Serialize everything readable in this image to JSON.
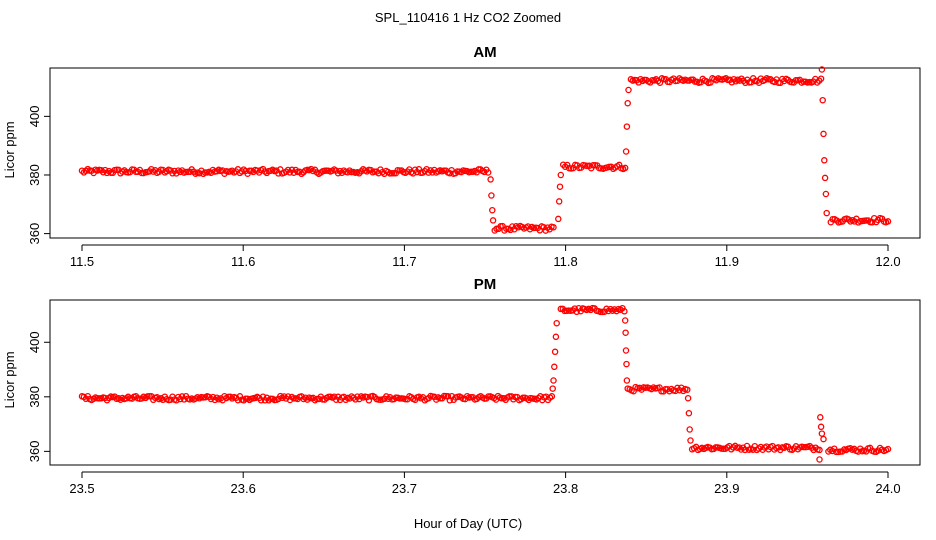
{
  "figure": {
    "title": "SPL_110416  1 Hz CO2 Zoomed",
    "xlabel": "Hour of Day (UTC)"
  },
  "chart_data": [
    {
      "type": "scatter",
      "title": "AM",
      "ylabel": "Licor ppm",
      "xlim": [
        11.5,
        12.0
      ],
      "ylim": [
        358.5,
        416.5
      ],
      "x_ticks": [
        "11.5",
        "11.6",
        "11.7",
        "11.8",
        "11.9",
        "12.0"
      ],
      "y_ticks": [
        "360",
        "380",
        "400"
      ],
      "marker_color": "#ff0000",
      "series": [
        {
          "segments": [
            {
              "x0": 11.5,
              "x1": 11.752,
              "y": 381.2
            },
            {
              "x0": 11.756,
              "x1": 11.7925,
              "y": 361.8
            },
            {
              "x0": 11.7985,
              "x1": 11.837,
              "y": 382.8
            },
            {
              "x0": 11.8405,
              "x1": 11.9585,
              "y": 412.2
            },
            {
              "x0": 11.9645,
              "x1": 12.0,
              "y": 364.6
            }
          ],
          "transitions": [
            {
              "x": 11.7535,
              "y": 378.5
            },
            {
              "x": 11.754,
              "y": 373.0
            },
            {
              "x": 11.7545,
              "y": 368.0
            },
            {
              "x": 11.755,
              "y": 364.5
            },
            {
              "x": 11.7955,
              "y": 365.0
            },
            {
              "x": 11.796,
              "y": 371.0
            },
            {
              "x": 11.7965,
              "y": 376.0
            },
            {
              "x": 11.797,
              "y": 380.0
            },
            {
              "x": 11.8375,
              "y": 388.0
            },
            {
              "x": 11.838,
              "y": 396.5
            },
            {
              "x": 11.8385,
              "y": 404.5
            },
            {
              "x": 11.839,
              "y": 409.0
            },
            {
              "x": 11.959,
              "y": 416.0
            },
            {
              "x": 11.9595,
              "y": 405.5
            },
            {
              "x": 11.96,
              "y": 394.0
            },
            {
              "x": 11.9605,
              "y": 385.0
            },
            {
              "x": 11.961,
              "y": 379.0
            },
            {
              "x": 11.9615,
              "y": 373.5
            },
            {
              "x": 11.962,
              "y": 367.0
            }
          ]
        }
      ]
    },
    {
      "type": "scatter",
      "title": "PM",
      "ylabel": "Licor ppm",
      "xlim": [
        23.5,
        24.0
      ],
      "ylim": [
        355.0,
        415.5
      ],
      "x_ticks": [
        "23.5",
        "23.6",
        "23.7",
        "23.8",
        "23.9",
        "24.0"
      ],
      "y_ticks": [
        "360",
        "380",
        "400"
      ],
      "marker_color": "#ff0000",
      "series": [
        {
          "segments": [
            {
              "x0": 23.5,
              "x1": 23.7915,
              "y": 379.5
            },
            {
              "x0": 23.797,
              "x1": 23.8365,
              "y": 411.8
            },
            {
              "x0": 23.8385,
              "x1": 23.8755,
              "y": 382.8
            },
            {
              "x0": 23.8785,
              "x1": 23.9575,
              "y": 361.3
            },
            {
              "x0": 23.963,
              "x1": 24.0,
              "y": 360.6
            }
          ],
          "transitions": [
            {
              "x": 23.792,
              "y": 383.0
            },
            {
              "x": 23.7925,
              "y": 386.0
            },
            {
              "x": 23.793,
              "y": 391.0
            },
            {
              "x": 23.7935,
              "y": 396.5
            },
            {
              "x": 23.794,
              "y": 402.0
            },
            {
              "x": 23.7945,
              "y": 407.0
            },
            {
              "x": 23.837,
              "y": 408.0
            },
            {
              "x": 23.8372,
              "y": 403.5
            },
            {
              "x": 23.8375,
              "y": 397.0
            },
            {
              "x": 23.8378,
              "y": 392.0
            },
            {
              "x": 23.838,
              "y": 386.0
            },
            {
              "x": 23.876,
              "y": 379.5
            },
            {
              "x": 23.8765,
              "y": 374.0
            },
            {
              "x": 23.877,
              "y": 368.0
            },
            {
              "x": 23.8775,
              "y": 364.0
            },
            {
              "x": 23.958,
              "y": 372.5
            },
            {
              "x": 23.9585,
              "y": 369.0
            },
            {
              "x": 23.959,
              "y": 366.5
            },
            {
              "x": 23.9575,
              "y": 357.0
            },
            {
              "x": 23.96,
              "y": 364.5
            }
          ]
        }
      ]
    }
  ]
}
